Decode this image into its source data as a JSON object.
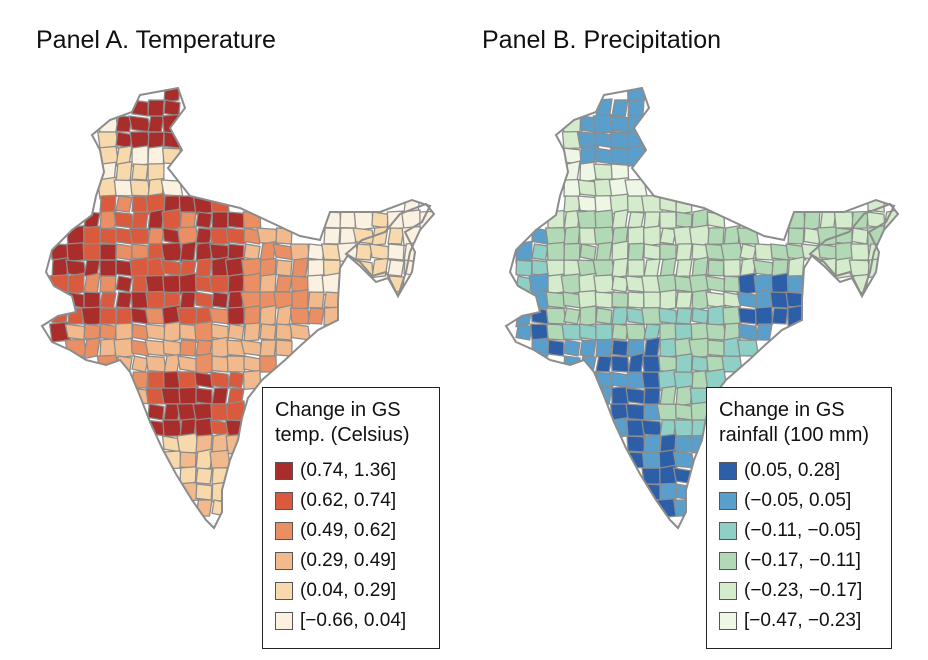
{
  "panels": [
    {
      "title": "Panel A. Temperature",
      "legend": {
        "title_line1": "Change in GS",
        "title_line2": "temp. (Celsius)",
        "items": [
          {
            "label": "(0.74, 1.36]",
            "color": "#a82d2b"
          },
          {
            "label": "(0.62, 0.74]",
            "color": "#d95a3c"
          },
          {
            "label": "(0.49, 0.62]",
            "color": "#ea8f63"
          },
          {
            "label": "(0.29, 0.49]",
            "color": "#f2ba8c"
          },
          {
            "label": "(0.04, 0.29]",
            "color": "#f8d9ab"
          },
          {
            "label": "[−0.66, 0.04]",
            "color": "#fbf1e0"
          }
        ]
      }
    },
    {
      "title": "Panel B. Precipitation",
      "legend": {
        "title_line1": "Change in GS",
        "title_line2": "rainfall (100 mm)",
        "items": [
          {
            "label": "(0.05, 0.28]",
            "color": "#2c5fa8"
          },
          {
            "label": "(−0.05, 0.05]",
            "color": "#5a9fcc"
          },
          {
            "label": "(−0.11, −0.05]",
            "color": "#8ecfc6"
          },
          {
            "label": "(−0.17, −0.11]",
            "color": "#b1d9b5"
          },
          {
            "label": "(−0.23, −0.17]",
            "color": "#d4eccc"
          },
          {
            "label": "[−0.47, −0.23]",
            "color": "#eef7e6"
          }
        ]
      }
    }
  ],
  "boundary_color": "#8c8c8c"
}
